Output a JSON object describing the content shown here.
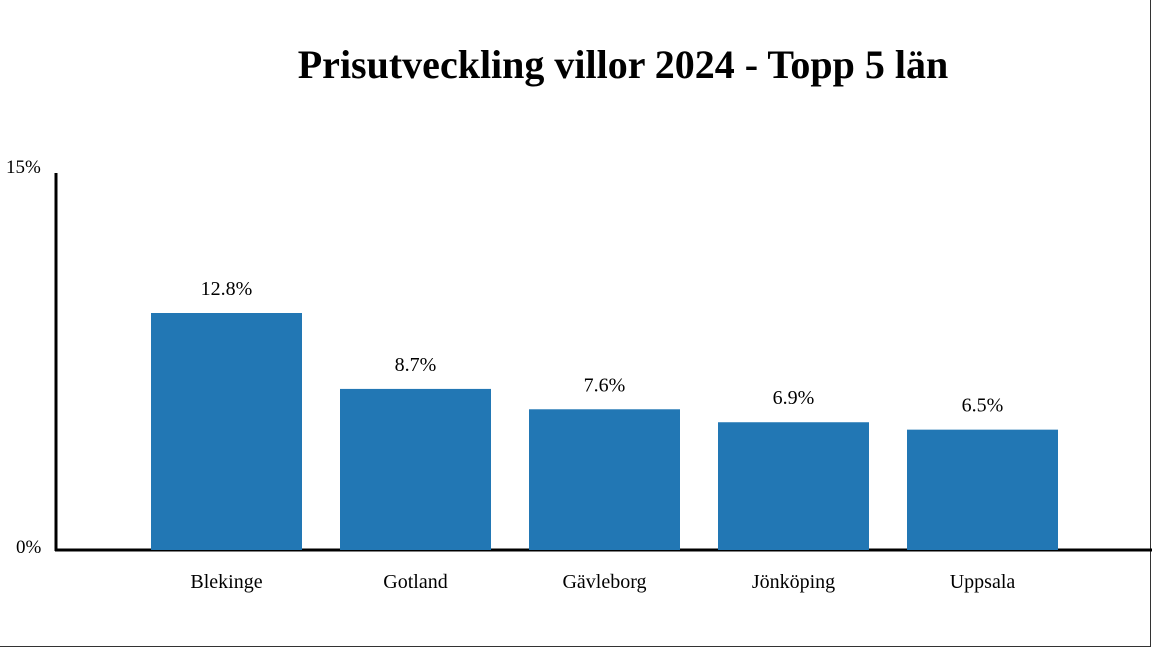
{
  "chart_data": {
    "type": "bar",
    "title": "Prisutveckling villor 2024 - Topp 5 län",
    "categories": [
      "Blekinge",
      "Gotland",
      "Gävleborg",
      "Jönköping",
      "Uppsala"
    ],
    "values": [
      12.8,
      8.7,
      7.6,
      6.9,
      6.5
    ],
    "data_labels": [
      "12.8%",
      "8.7%",
      "7.6%",
      "6.9%",
      "6.5%"
    ],
    "y_ticks": [
      "0%",
      "15%"
    ],
    "ylim": [
      0,
      15
    ],
    "unit": "%",
    "grid": false,
    "bar_color": "#2277b4"
  }
}
